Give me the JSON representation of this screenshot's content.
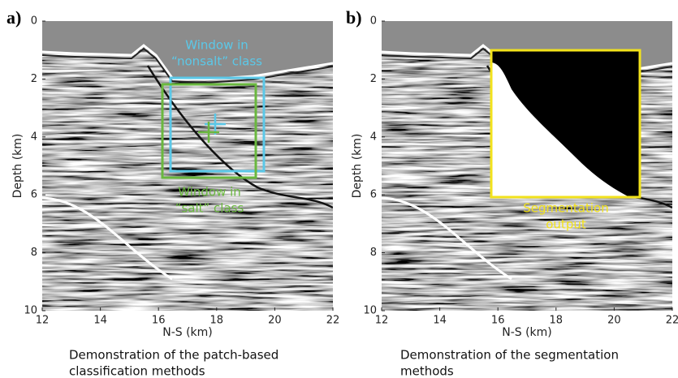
{
  "panels": [
    {
      "label": "a)",
      "xlabel": "N-S (km)",
      "ylabel": "Depth (km)",
      "xlim": [
        12,
        22
      ],
      "ylim": [
        0,
        10
      ],
      "xticks": [
        12,
        14,
        16,
        18,
        20,
        22
      ],
      "yticks": [
        0,
        2,
        4,
        6,
        8,
        10
      ],
      "annotations": [
        {
          "lines": [
            "Window in",
            "“nonsalt” class"
          ],
          "color": "#5bc8e8"
        },
        {
          "lines": [
            "Window in",
            "“salt” class"
          ],
          "color": "#6ab83f"
        }
      ],
      "caption": [
        "Demonstration of the patch-based",
        "classification methods"
      ]
    },
    {
      "label": "b)",
      "xlabel": "N-S (km)",
      "ylabel": "Depth (km)",
      "xlim": [
        12,
        22
      ],
      "ylim": [
        0,
        10
      ],
      "xticks": [
        12,
        14,
        16,
        18,
        20,
        22
      ],
      "yticks": [
        0,
        2,
        4,
        6,
        8,
        10
      ],
      "annotations": [
        {
          "lines": [
            "Segmentation",
            "output"
          ],
          "color": "#f2e21c"
        }
      ],
      "caption": [
        "Demonstration of the segmentation",
        "methods"
      ]
    }
  ]
}
